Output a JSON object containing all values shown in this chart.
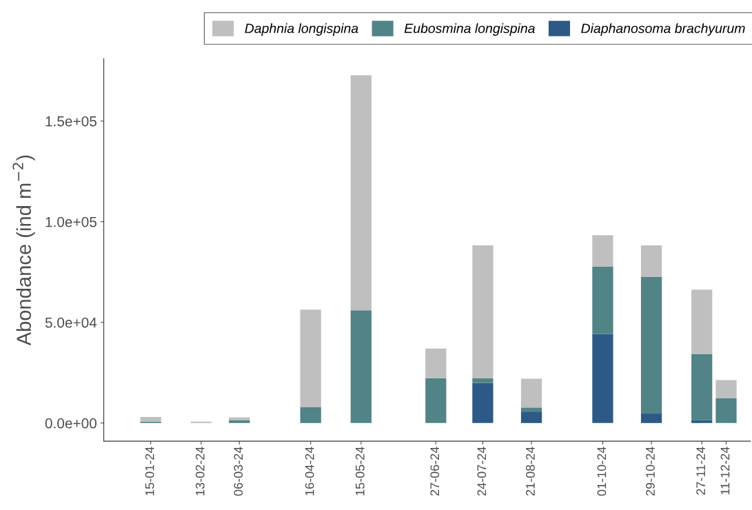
{
  "chart_data": {
    "type": "bar",
    "stacked": true,
    "ylabel": "Abondance (ind m$^{−2}$)",
    "x": [
      "2024-01-15",
      "2024-02-13",
      "2024-03-06",
      "2024-04-16",
      "2024-05-15",
      "2024-06-27",
      "2024-07-24",
      "2024-08-21",
      "2024-10-01",
      "2024-10-29",
      "2024-11-27",
      "2024-12-11"
    ],
    "series": [
      {
        "name": "Diaphanosoma brachyurum",
        "color": "#2d5986",
        "values": [
          0,
          0,
          0,
          0,
          0,
          0,
          20000,
          5700,
          44300,
          4700,
          1500,
          0
        ]
      },
      {
        "name": "Eubosmina longispina",
        "color": "#518387",
        "values": [
          700,
          0,
          1300,
          8000,
          56000,
          22300,
          2300,
          2000,
          33400,
          68000,
          32800,
          12300
        ]
      },
      {
        "name": "Daphnia longispina",
        "color": "#bfbfbf",
        "values": [
          2300,
          700,
          1500,
          48300,
          116700,
          14700,
          66000,
          14300,
          15600,
          15600,
          32000,
          9000
        ]
      }
    ],
    "xlim": [
      "2023-12-19",
      "2024-12-25"
    ],
    "xticks": [
      {
        "value": "2024-01-15",
        "label": "15-01-24"
      },
      {
        "value": "2024-02-13",
        "label": "13-02-24"
      },
      {
        "value": "2024-03-06",
        "label": "06-03-24"
      },
      {
        "value": "2024-04-16",
        "label": "16-04-24"
      },
      {
        "value": "2024-05-15",
        "label": "15-05-24"
      },
      {
        "value": "2024-06-27",
        "label": "27-06-24"
      },
      {
        "value": "2024-07-24",
        "label": "24-07-24"
      },
      {
        "value": "2024-08-21",
        "label": "21-08-24"
      },
      {
        "value": "2024-10-01",
        "label": "01-10-24"
      },
      {
        "value": "2024-10-29",
        "label": "29-10-24"
      },
      {
        "value": "2024-11-27",
        "label": "27-11-24"
      },
      {
        "value": "2024-12-11",
        "label": "11-12-24"
      }
    ],
    "ylim": [
      -9000,
      181000
    ],
    "yticks": [
      {
        "value": 0,
        "label": "0.0e+00"
      },
      {
        "value": 50000,
        "label": "5.0e+04"
      },
      {
        "value": 100000,
        "label": "1.0e+05"
      },
      {
        "value": 150000,
        "label": "1.5e+05"
      }
    ],
    "grid": false,
    "legend": "top"
  }
}
